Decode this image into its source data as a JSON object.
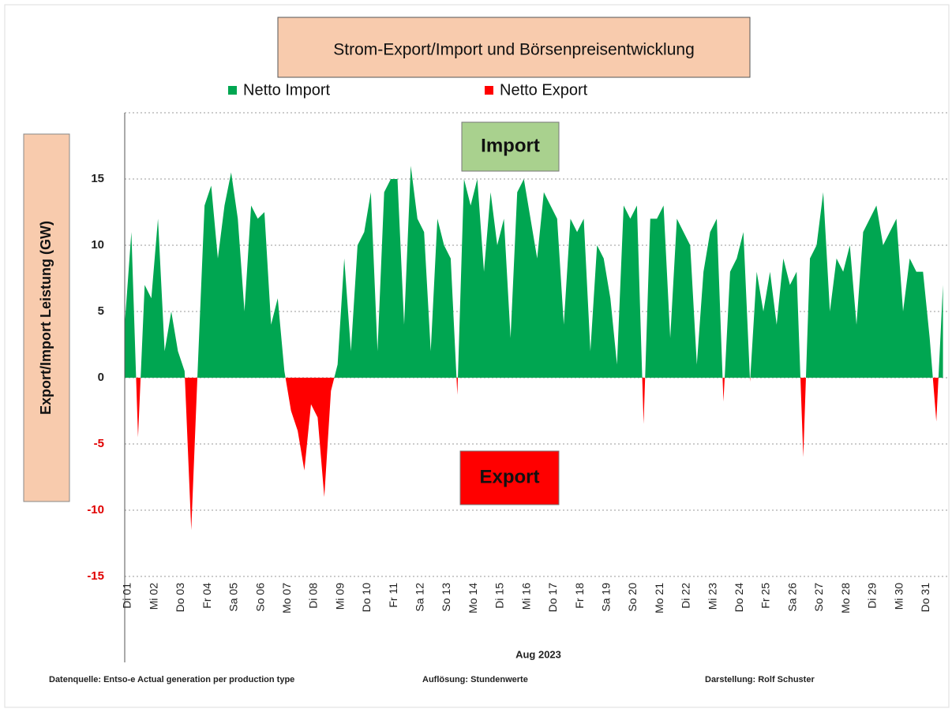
{
  "chart_data": {
    "type": "area",
    "title": "Strom-Export/Import und Börsenpreisentwicklung",
    "ylabel": "Export/Import Leistung (GW)",
    "xlabel": "Aug 2023",
    "legend": [
      {
        "name": "Netto Import",
        "color": "#00a651"
      },
      {
        "name": "Netto Export",
        "color": "#ff0000"
      }
    ],
    "annotations": [
      {
        "text": "Import",
        "color": "#a9d18e"
      },
      {
        "text": "Export",
        "color": "#ff0000"
      }
    ],
    "negative_tick_color": "#e00000",
    "footer": [
      "Datenquelle: Entso-e  Actual generation per production type",
      "Auflösung: Stundenwerte",
      "Darstellung:  Rolf Schuster"
    ],
    "categories": [
      "Di 01",
      null,
      null,
      null,
      "Mi 02",
      null,
      null,
      null,
      "Do 03",
      null,
      null,
      null,
      "Fr 04",
      null,
      null,
      null,
      "Sa 05",
      null,
      null,
      null,
      "So 06",
      null,
      null,
      null,
      "Mo 07",
      null,
      null,
      null,
      "Di 08",
      null,
      null,
      null,
      "Mi 09",
      null,
      null,
      null,
      "Do 10",
      null,
      null,
      null,
      "Fr 11",
      null,
      null,
      null,
      "Sa 12",
      null,
      null,
      null,
      "So 13",
      null,
      null,
      null,
      "Mo 14",
      null,
      null,
      null,
      "Di 15",
      null,
      null,
      null,
      "Mi 16",
      null,
      null,
      null,
      "Do 17",
      null,
      null,
      null,
      "Fr 18",
      null,
      null,
      null,
      "Sa 19",
      null,
      null,
      null,
      "So 20",
      null,
      null,
      null,
      "Mo 21",
      null,
      null,
      null,
      "Di 22",
      null,
      null,
      null,
      "Mi 23",
      null,
      null,
      null,
      "Do 24",
      null,
      null,
      null,
      "Fr 25",
      null,
      null,
      null,
      "Sa 26",
      null,
      null,
      null,
      "So 27",
      null,
      null,
      null,
      "Mo 28",
      null,
      null,
      null,
      "Di 29",
      null,
      null,
      null,
      "Mi 30",
      null,
      null,
      null,
      "Do 31",
      null,
      null,
      null
    ],
    "values": [
      4,
      11,
      -4.5,
      7,
      6,
      12,
      2,
      5,
      2,
      0.5,
      -11.5,
      1,
      13,
      14.5,
      9,
      13,
      15.5,
      12,
      5,
      13,
      12,
      12.5,
      4,
      6,
      0.5,
      -2.5,
      -4,
      -7,
      -2,
      -3,
      -9,
      -1,
      1,
      9,
      2,
      10,
      11,
      14,
      2,
      14,
      15,
      15,
      4,
      16,
      12,
      11,
      2,
      12,
      10,
      9,
      -1.3,
      15,
      13,
      15,
      8,
      14,
      10,
      12,
      3,
      14,
      15,
      12,
      9,
      14,
      13,
      12,
      4,
      12,
      11,
      12,
      2,
      10,
      9,
      6,
      1,
      13,
      12,
      13,
      -3.5,
      12,
      12,
      13,
      3,
      12,
      11,
      10,
      1,
      8,
      11,
      12,
      -1.8,
      8,
      9,
      11,
      -0.3,
      8,
      5,
      8,
      4,
      9,
      7,
      8,
      -6,
      9,
      10,
      14,
      5,
      9,
      8,
      10,
      4,
      11,
      12,
      13,
      10,
      11,
      12,
      5,
      9,
      8,
      8,
      3,
      -3.3,
      7
    ],
    "ylim": [
      -15,
      20
    ],
    "yticks": [
      -15,
      -10,
      -5,
      0,
      5,
      10,
      15
    ],
    "grid": true
  }
}
